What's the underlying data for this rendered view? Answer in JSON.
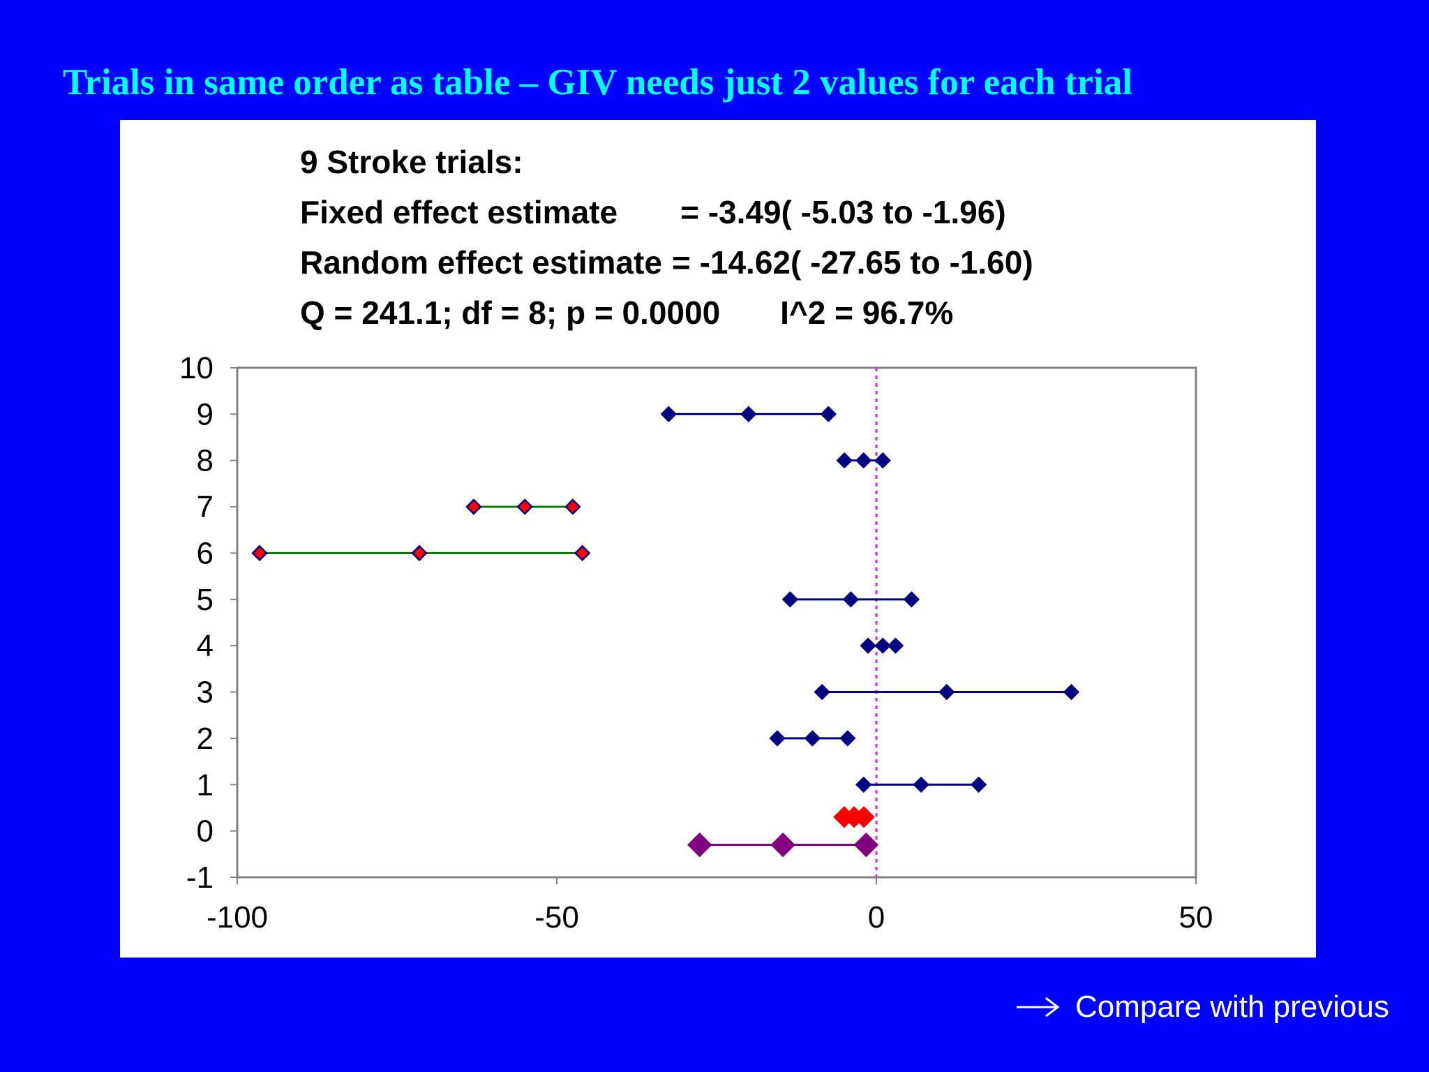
{
  "slide": {
    "title": "Trials in same order as table – GIV needs just 2 values for each trial",
    "footer_link": "Compare with previous",
    "footer_icon": "right-arrow-icon"
  },
  "summary": {
    "line1": "9 Stroke trials:",
    "fixed_label": "Fixed effect estimate",
    "fixed_value": "= -3.49( -5.03 to -1.96)",
    "random_label": "Random effect estimate",
    "random_value": "= -14.62( -27.65 to -1.60)",
    "q_stats": "Q = 241.1; df = 8; p = 0.0000",
    "i2": "I^2 = 96.7%"
  },
  "colors": {
    "background": "#0000ff",
    "title": "#00ffff",
    "trial_marker": "#000080",
    "highlight_line": "#008000",
    "highlight_fill": "#ff0000",
    "fixed_marker": "#ff0000",
    "random_marker": "#800080",
    "reference_line": "#e020e0"
  },
  "chart_data": {
    "type": "scatter",
    "xlim": [
      -100,
      50
    ],
    "ylim": [
      -1,
      10
    ],
    "x_ticks": [
      "-100",
      "-50",
      "0",
      "50"
    ],
    "y_ticks": [
      "-1",
      "0",
      "1",
      "2",
      "3",
      "4",
      "5",
      "6",
      "7",
      "8",
      "9",
      "10"
    ],
    "reference_x": 0,
    "trials": [
      {
        "y": 1,
        "low": -2,
        "est": 7,
        "high": 16,
        "style": "normal"
      },
      {
        "y": 2,
        "low": -15.5,
        "est": -10,
        "high": -4.5,
        "style": "normal"
      },
      {
        "y": 3,
        "low": -8.5,
        "est": 11,
        "high": 30.5,
        "style": "normal"
      },
      {
        "y": 4,
        "low": -1.3,
        "est": 1,
        "high": 3,
        "style": "normal"
      },
      {
        "y": 5,
        "low": -13.5,
        "est": -4,
        "high": 5.5,
        "style": "normal"
      },
      {
        "y": 6,
        "low": -96.5,
        "est": -71.5,
        "high": -46,
        "style": "highlight"
      },
      {
        "y": 7,
        "low": -63,
        "est": -55,
        "high": -47.5,
        "style": "highlight"
      },
      {
        "y": 8,
        "low": -5,
        "est": -2,
        "high": 1,
        "style": "normal"
      },
      {
        "y": 9,
        "low": -32.5,
        "est": -20,
        "high": -7.5,
        "style": "normal"
      }
    ],
    "fixed_effect": {
      "y": 0.3,
      "low": -5.03,
      "est": -3.49,
      "high": -1.96
    },
    "random_effect": {
      "y": -0.3,
      "low": -27.65,
      "est": -14.62,
      "high": -1.6
    }
  }
}
